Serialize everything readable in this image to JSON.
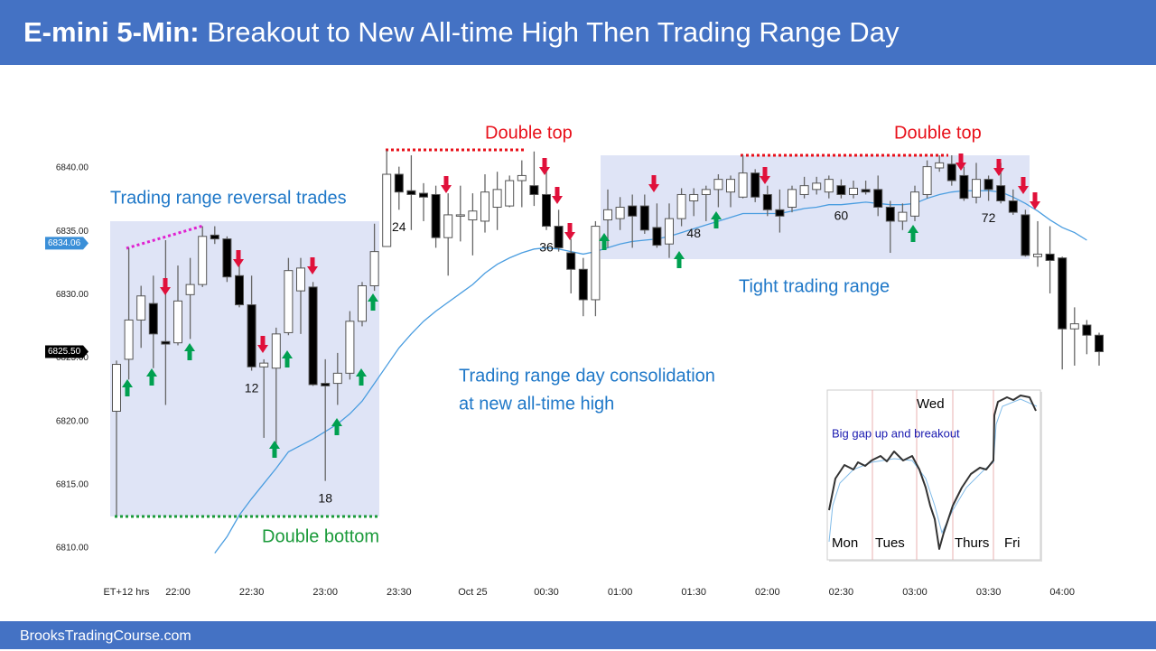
{
  "header": {
    "label": "E-mini 5-Min:",
    "title": "Breakout to New All-time High Then Trading Range Day"
  },
  "footer": {
    "site": "BrooksTradingCourse.com"
  },
  "chart_data": {
    "type": "candlestick",
    "x_label": "ET+12 hrs",
    "categories": [
      null,
      null,
      null,
      null,
      null,
      "22:00",
      null,
      null,
      null,
      null,
      null,
      "22:30",
      null,
      null,
      null,
      null,
      null,
      "23:00",
      null,
      null,
      null,
      null,
      null,
      "23:30",
      null,
      null,
      null,
      null,
      null,
      "Oct 25",
      null,
      null,
      null,
      null,
      null,
      "00:30",
      null,
      null,
      null,
      null,
      null,
      "01:00",
      null,
      null,
      null,
      null,
      null,
      "01:30",
      null,
      null,
      null,
      null,
      null,
      "02:00",
      null,
      null,
      null,
      null,
      null,
      "02:30",
      null,
      null,
      null,
      null,
      null,
      "03:00",
      null,
      null,
      null,
      null,
      null,
      "03:30",
      null,
      null,
      null,
      null,
      null,
      "04:00",
      null,
      null,
      null
    ],
    "open": [
      6820.8,
      6824.9,
      6828,
      6829.3,
      6826.3,
      6826.2,
      6830,
      6830.8,
      6834.7,
      6834.4,
      6831.5,
      6829.2,
      6824.3,
      6824.2,
      6827,
      6830.3,
      6830.6,
      6823,
      6823,
      6823.8,
      6827.9,
      6830.7,
      6833.8,
      6839.5,
      6838.2,
      6838,
      6837.9,
      6834.5,
      6836.2,
      6835.9,
      6835.8,
      6836.9,
      6837,
      6839,
      6838.6,
      6837.9,
      6835.4,
      6833.3,
      6832,
      6829.6,
      6835.9,
      6836,
      6837,
      6837,
      6835.3,
      6834,
      6836,
      6837.4,
      6837.9,
      6838.3,
      6838.1,
      6837.7,
      6839.6,
      6837.9,
      6836.7,
      6836.9,
      6837.9,
      6838.3,
      6838.1,
      6838.6,
      6837.9,
      6838.3,
      6838.3,
      6836.9,
      6835.8,
      6836.2,
      6837.9,
      6840,
      6840.3,
      6839.4,
      6837.7,
      6839.1,
      6838.6,
      6837.4,
      6836.3,
      6833,
      6833.2,
      6832.9,
      6827.3,
      6827.6,
      6826.8
    ],
    "high": [
      6824.8,
      6833.7,
      6830.7,
      6831.5,
      6834.3,
      6832.3,
      6832.9,
      6835.4,
      6835.4,
      6834.6,
      6833.3,
      6831.5,
      6824.9,
      6827.4,
      6832.9,
      6832.9,
      6831,
      6824.9,
      6825.4,
      6828.7,
      6831,
      6835.6,
      6841.4,
      6840.1,
      6841,
      6838.8,
      6838.6,
      6838,
      6838.6,
      6838,
      6839.5,
      6839.7,
      6839.4,
      6840.6,
      6841.3,
      6840,
      6836.7,
      6834.4,
      6832.9,
      6835.8,
      6838.3,
      6837.7,
      6837.9,
      6837.9,
      6837.2,
      6837.2,
      6838.4,
      6838.4,
      6838.6,
      6839.5,
      6839.4,
      6841,
      6839.9,
      6838.6,
      6838.3,
      6838.6,
      6839.3,
      6839.3,
      6839.4,
      6839.1,
      6839,
      6839,
      6839.4,
      6837.4,
      6837.2,
      6838.6,
      6840.6,
      6841,
      6841,
      6840.1,
      6840.4,
      6839.4,
      6840.4,
      6838.3,
      6836.7,
      6835.8,
      6835.4,
      6833,
      6829,
      6828,
      6827
    ],
    "low": [
      6812.6,
      6823.3,
      6825.8,
      6824.2,
      6821.3,
      6826,
      6826.5,
      6830.6,
      6834,
      6831,
      6829,
      6824,
      6818.7,
      6817.3,
      6826.8,
      6826.9,
      6822.8,
      6815.3,
      6821.3,
      6823.3,
      6827.5,
      6830.3,
      6833.8,
      6836.7,
      6835.1,
      6835.8,
      6833.7,
      6831.5,
      6834.2,
      6833.1,
      6834.9,
      6835.1,
      6836.9,
      6836.9,
      6837,
      6835.1,
      6833.4,
      6830.1,
      6828.3,
      6828.3,
      6833.7,
      6835.1,
      6833.7,
      6834.8,
      6833.7,
      6832.9,
      6835.4,
      6836.2,
      6835.8,
      6836.9,
      6836.9,
      6837.6,
      6837.3,
      6836.2,
      6834.9,
      6836.5,
      6837.6,
      6837.9,
      6837.6,
      6837.6,
      6837.6,
      6837.9,
      6836.2,
      6833.3,
      6835.1,
      6835.8,
      6837.6,
      6839.7,
      6838.6,
      6837.4,
      6837.2,
      6837.4,
      6837.2,
      6836.3,
      6833,
      6832.2,
      6830.1,
      6824.1,
      6824.4,
      6825.3,
      6824.4
    ],
    "close": [
      6824.5,
      6828,
      6829.9,
      6826.9,
      6826.1,
      6829.5,
      6830.8,
      6834.6,
      6834.4,
      6831.4,
      6829.2,
      6824.3,
      6824.6,
      6826.9,
      6831.9,
      6832.1,
      6822.9,
      6822.8,
      6823.8,
      6827.9,
      6830.7,
      6833.4,
      6839.5,
      6838.1,
      6837.9,
      6837.7,
      6834.5,
      6836.3,
      6836.3,
      6836.6,
      6838.1,
      6838.3,
      6839,
      6839.4,
      6837.9,
      6835.4,
      6833.7,
      6832,
      6829.6,
      6835.4,
      6836.7,
      6836.9,
      6836.2,
      6835.1,
      6833.9,
      6836,
      6837.9,
      6837.9,
      6838.3,
      6839.1,
      6839.1,
      6839.6,
      6837.7,
      6836.7,
      6836.2,
      6838.3,
      6838.6,
      6838.8,
      6839.1,
      6837.9,
      6838.4,
      6838.1,
      6836.9,
      6835.8,
      6836.5,
      6838.1,
      6840.1,
      6840.4,
      6839,
      6837.6,
      6839.1,
      6838.3,
      6837.4,
      6836.5,
      6833.1,
      6833.2,
      6832.7,
      6827.3,
      6827.7,
      6826.8,
      6825.5
    ],
    "up_color": "#ffffff",
    "down_color": "#000000",
    "ma": {
      "color": "#4a9de0",
      "values": [
        null,
        null,
        null,
        null,
        null,
        null,
        null,
        null,
        6809.6,
        6810.9,
        6812.6,
        6813.9,
        6815.1,
        6816.3,
        6817.6,
        6818.1,
        6818.6,
        6819.2,
        6819.8,
        6820.6,
        6821.6,
        6823,
        6824.4,
        6825.8,
        6826.9,
        6827.9,
        6828.7,
        6829.4,
        6830.1,
        6830.8,
        6831.7,
        6832.4,
        6832.9,
        6833.3,
        6833.6,
        6833.7,
        6833.6,
        6833.4,
        6833.2,
        6833.4,
        6833.7,
        6834,
        6834.2,
        6834.3,
        6834.4,
        6834.6,
        6834.9,
        6835.2,
        6835.5,
        6835.8,
        6836.1,
        6836.4,
        6836.4,
        6836.4,
        6836.4,
        6836.6,
        6836.8,
        6836.9,
        6837.1,
        6837.1,
        6837.2,
        6837.3,
        6837.2,
        6837.1,
        6837.1,
        6837.2,
        6837.6,
        6837.9,
        6838.1,
        6838.2,
        6838.2,
        6838.2,
        6838.1,
        6837.7,
        6837.2,
        6836.6,
        6835.9,
        6835.3,
        6834.9,
        6834.3,
        null
      ]
    },
    "ylim": [
      6808,
      6846
    ],
    "yticks": [
      {
        "value": 6810,
        "label": "6810.00"
      },
      {
        "value": 6815,
        "label": "6815.00"
      },
      {
        "value": 6820,
        "label": "6820.00"
      },
      {
        "value": 6825,
        "label": "6825.00"
      },
      {
        "value": 6830,
        "label": "6830.00"
      },
      {
        "value": 6835,
        "label": "6835.00"
      },
      {
        "value": 6840,
        "label": "6840.00"
      }
    ],
    "ma_price": {
      "value": 6834.06,
      "label": "6834.06"
    },
    "last_price": {
      "value": 6825.5,
      "label": "6825.50"
    },
    "bar_numbers": [
      12,
      18,
      24,
      36,
      48,
      60,
      72
    ],
    "annotations": [
      {
        "text": "Trading range reversal trades",
        "color": "#1f78c8"
      },
      {
        "text": "Double top",
        "color": "#e8101a"
      },
      {
        "text": "Double top",
        "color": "#e8101a"
      },
      {
        "text": "Double bottom",
        "color": "#1a9a3a"
      },
      {
        "text": "Tight trading range",
        "color": "#1f78c8"
      },
      {
        "text": "Trading range day consolidation",
        "color": "#1f78c8"
      },
      {
        "text": "at new all-time high",
        "color": "#1f78c8"
      }
    ],
    "inset": {
      "days": [
        "Mon",
        "Tues",
        "Wed",
        "Thurs",
        "Fri"
      ],
      "note": "Big gap up and breakout"
    }
  }
}
